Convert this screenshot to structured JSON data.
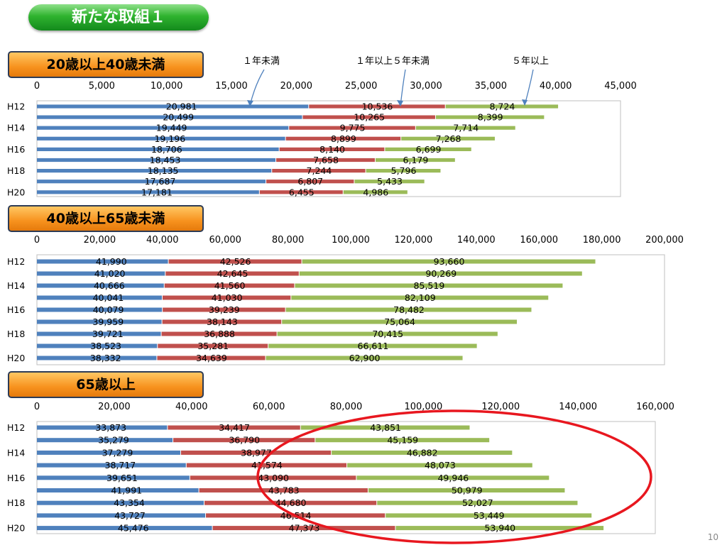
{
  "title": "新たな取組１",
  "page_number": "10",
  "legend": [
    "１年未満",
    "１年以上５年未満",
    "５年以上"
  ],
  "colors": {
    "blue": "#4f81bd",
    "red": "#c0504d",
    "green": "#9bbb59",
    "circle": "#e8171f"
  },
  "chart_data": [
    {
      "type": "bar",
      "stacked": true,
      "orientation": "horizontal",
      "title": "20歳以上40歳未満",
      "categories": [
        "H12",
        "",
        "H14",
        "",
        "H16",
        "",
        "H18",
        "",
        "H20"
      ],
      "xlim": [
        0,
        45000
      ],
      "x_ticks": [
        "0",
        "5,000",
        "10,000",
        "15,000",
        "20,000",
        "25,000",
        "30,000",
        "35,000",
        "40,000",
        "45,000"
      ],
      "series": [
        {
          "name": "１年未満",
          "values": [
            20981,
            20499,
            19449,
            19196,
            18706,
            18453,
            18135,
            17687,
            17181
          ],
          "labels": [
            "20,981",
            "20,499",
            "19,449",
            "19,196",
            "18,706",
            "18,453",
            "18,135",
            "17,687",
            "17,181"
          ]
        },
        {
          "name": "１年以上５年未満",
          "values": [
            10536,
            10265,
            9775,
            8899,
            8140,
            7658,
            7244,
            6807,
            6455
          ],
          "labels": [
            "10,536",
            "10,265",
            "9,775",
            "8,899",
            "8,140",
            "7,658",
            "7,244",
            "6,807",
            "6,455"
          ]
        },
        {
          "name": "５年以上",
          "values": [
            8724,
            8399,
            7714,
            7268,
            6699,
            6179,
            5796,
            5433,
            4986
          ],
          "labels": [
            "8,724",
            "8,399",
            "7,714",
            "7,268",
            "6,699",
            "6,179",
            "5,796",
            "5,433",
            "4,986"
          ]
        }
      ]
    },
    {
      "type": "bar",
      "stacked": true,
      "orientation": "horizontal",
      "title": "40歳以上65歳未満",
      "categories": [
        "H12",
        "",
        "H14",
        "",
        "H16",
        "",
        "H18",
        "",
        "H20"
      ],
      "xlim": [
        0,
        200000
      ],
      "x_ticks": [
        "0",
        "20,000",
        "40,000",
        "60,000",
        "80,000",
        "100,000",
        "120,000",
        "140,000",
        "160,000",
        "180,000",
        "200,000"
      ],
      "series": [
        {
          "name": "１年未満",
          "values": [
            41990,
            41020,
            40666,
            40041,
            40079,
            39959,
            39721,
            38523,
            38332
          ],
          "labels": [
            "41,990",
            "41,020",
            "40,666",
            "40,041",
            "40,079",
            "39,959",
            "39,721",
            "38,523",
            "38,332"
          ]
        },
        {
          "name": "１年以上５年未満",
          "values": [
            42526,
            42645,
            41560,
            41030,
            39239,
            38143,
            36888,
            35281,
            34639
          ],
          "labels": [
            "42,526",
            "42,645",
            "41,560",
            "41,030",
            "39,239",
            "38,143",
            "36,888",
            "35,281",
            "34,639"
          ]
        },
        {
          "name": "５年以上",
          "values": [
            93660,
            90269,
            85519,
            82109,
            78482,
            75064,
            70415,
            66611,
            62900
          ],
          "labels": [
            "93,660",
            "90,269",
            "85,519",
            "82,109",
            "78,482",
            "75,064",
            "70,415",
            "66,611",
            "62,900"
          ]
        }
      ]
    },
    {
      "type": "bar",
      "stacked": true,
      "orientation": "horizontal",
      "title": "65歳以上",
      "categories": [
        "H12",
        "",
        "H14",
        "",
        "H16",
        "",
        "H18",
        "",
        "H20"
      ],
      "xlim": [
        0,
        160000
      ],
      "x_ticks": [
        "0",
        "20,000",
        "40,000",
        "60,000",
        "80,000",
        "100,000",
        "120,000",
        "140,000",
        "160,000"
      ],
      "series": [
        {
          "name": "１年未満",
          "values": [
            33873,
            35279,
            37279,
            38717,
            39651,
            41991,
            43354,
            43727,
            45476
          ],
          "labels": [
            "33,873",
            "35,279",
            "37,279",
            "38,717",
            "39,651",
            "41,991",
            "43,354",
            "43,727",
            "45,476"
          ]
        },
        {
          "name": "１年以上５年未満",
          "values": [
            34417,
            36790,
            38977,
            41574,
            43090,
            43783,
            44680,
            46514,
            47373
          ],
          "labels": [
            "34,417",
            "36,790",
            "38,977",
            "41,574",
            "43,090",
            "43,783",
            "44,680",
            "46,514",
            "47,373"
          ]
        },
        {
          "name": "５年以上",
          "values": [
            43851,
            45159,
            46882,
            48073,
            49946,
            50979,
            52027,
            53449,
            53940
          ],
          "labels": [
            "43,851",
            "45,159",
            "46,882",
            "48,073",
            "49,946",
            "50,979",
            "52,027",
            "53,449",
            "53,940"
          ]
        }
      ]
    }
  ]
}
